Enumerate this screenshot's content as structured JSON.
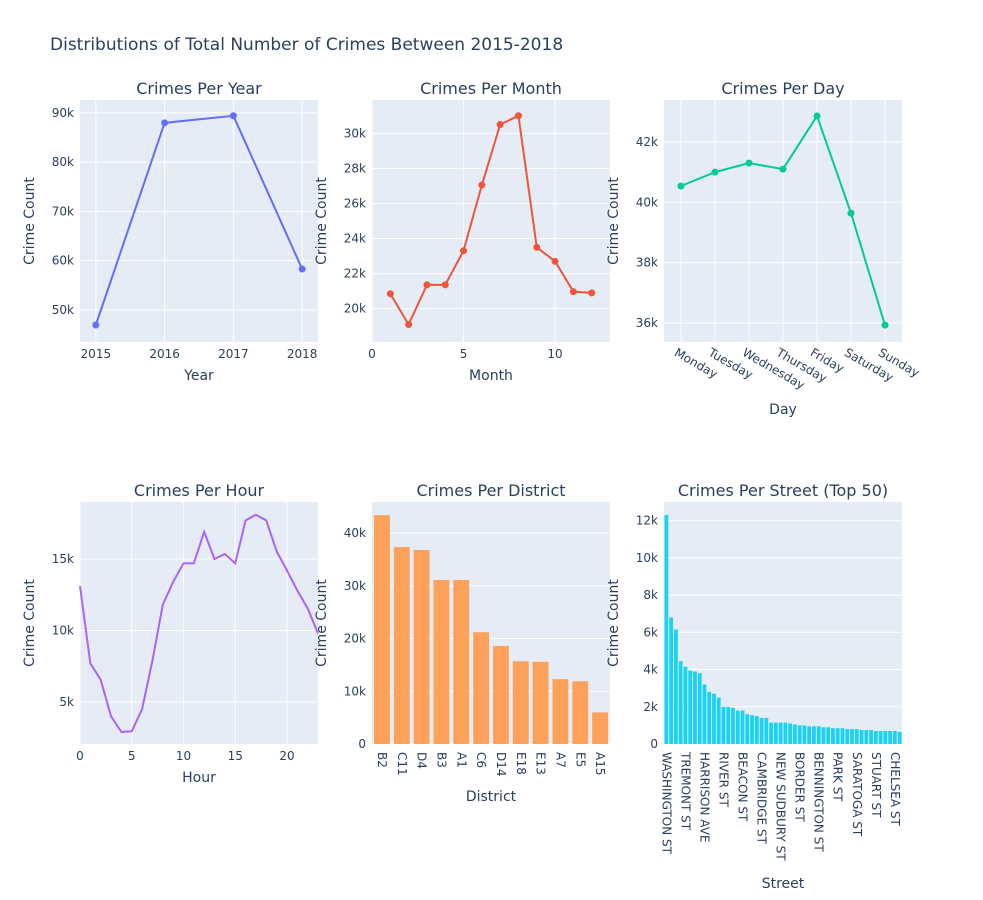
{
  "title": "Distributions of Total Number of Crimes Between 2015-2018",
  "chart_data": [
    {
      "type": "line",
      "title": "Crimes Per Year",
      "x_label": "Year",
      "y_label": "Crime Count",
      "color": "#636efa",
      "markers": true,
      "grid": true,
      "x": [
        2015,
        2016,
        2017,
        2018
      ],
      "values": [
        46950,
        87970,
        89400,
        58300
      ],
      "xlim": [
        2014.77,
        2018.23
      ],
      "xticks": [
        2015,
        2016,
        2017,
        2018
      ],
      "ylim": [
        43500,
        92600
      ],
      "yticks": [
        {
          "value": 50000,
          "label": "50k"
        },
        {
          "value": 60000,
          "label": "60k"
        },
        {
          "value": 70000,
          "label": "70k"
        },
        {
          "value": 80000,
          "label": "80k"
        },
        {
          "value": 90000,
          "label": "90k"
        }
      ]
    },
    {
      "type": "line",
      "title": "Crimes Per Month",
      "x_label": "Month",
      "y_label": "Crime Count",
      "color": "#ef553b",
      "markers": true,
      "grid": true,
      "x": [
        1,
        2,
        3,
        4,
        5,
        6,
        7,
        8,
        9,
        10,
        11,
        12
      ],
      "values": [
        20850,
        19100,
        21360,
        21360,
        23300,
        27050,
        30500,
        31000,
        23500,
        22700,
        20970,
        20900
      ],
      "xlim": [
        0,
        13
      ],
      "xticks": [
        0,
        5,
        10
      ],
      "ylim": [
        18100,
        31900
      ],
      "yticks": [
        {
          "value": 20000,
          "label": "20k"
        },
        {
          "value": 22000,
          "label": "22k"
        },
        {
          "value": 24000,
          "label": "24k"
        },
        {
          "value": 26000,
          "label": "26k"
        },
        {
          "value": 28000,
          "label": "28k"
        },
        {
          "value": 30000,
          "label": "30k"
        }
      ]
    },
    {
      "type": "line",
      "title": "Crimes Per Day",
      "x_label": "Day",
      "y_label": "Crime Count",
      "color": "#00cc96",
      "markers": true,
      "grid": true,
      "categories": [
        "Monday",
        "Tuesday",
        "Wednesday",
        "Thursday",
        "Friday",
        "Saturday",
        "Sunday"
      ],
      "values": [
        40540,
        41000,
        41300,
        41100,
        42860,
        39640,
        35930
      ],
      "ylim": [
        35370,
        43390
      ],
      "yticks": [
        {
          "value": 36000,
          "label": "36k"
        },
        {
          "value": 38000,
          "label": "38k"
        },
        {
          "value": 40000,
          "label": "40k"
        },
        {
          "value": 42000,
          "label": "42k"
        }
      ]
    },
    {
      "type": "line",
      "title": "Crimes Per Hour",
      "x_label": "Hour",
      "y_label": "Crime Count",
      "color": "#ab63fa",
      "markers": false,
      "grid": true,
      "x": [
        0,
        1,
        2,
        3,
        4,
        5,
        6,
        7,
        8,
        9,
        10,
        11,
        12,
        13,
        14,
        15,
        16,
        17,
        18,
        19,
        20,
        21,
        22,
        23
      ],
      "values": [
        13100,
        7700,
        6550,
        4000,
        2900,
        2950,
        4500,
        7900,
        11800,
        13400,
        14700,
        14700,
        16900,
        15000,
        15350,
        14700,
        17700,
        18100,
        17700,
        15550,
        14200,
        12800,
        11550,
        9800
      ],
      "xlim": [
        0,
        23
      ],
      "xticks": [
        0,
        5,
        10,
        15,
        20
      ],
      "ylim": [
        2060,
        18990
      ],
      "yticks": [
        {
          "value": 5000,
          "label": "5k"
        },
        {
          "value": 10000,
          "label": "10k"
        },
        {
          "value": 15000,
          "label": "15k"
        }
      ]
    },
    {
      "type": "bar",
      "title": "Crimes Per District",
      "x_label": "District",
      "y_label": "Crime Count",
      "color": "#ffa15a",
      "grid": true,
      "categories": [
        "B2",
        "C11",
        "D4",
        "B3",
        "A1",
        "C6",
        "D14",
        "E18",
        "E13",
        "A7",
        "E5",
        "A15"
      ],
      "values": [
        43400,
        37350,
        36800,
        31100,
        31100,
        21200,
        18600,
        15700,
        15600,
        12300,
        11900,
        6000
      ],
      "ylim": [
        0,
        45900
      ],
      "yticks": [
        0,
        {
          "value": 10000,
          "label": "10k"
        },
        {
          "value": 20000,
          "label": "20k"
        },
        {
          "value": 30000,
          "label": "30k"
        },
        {
          "value": 40000,
          "label": "40k"
        }
      ]
    },
    {
      "type": "bar",
      "title": "Crimes Per Street (Top 50)",
      "x_label": "Street",
      "y_label": "Crime Count",
      "color": "#19d3f3",
      "grid": true,
      "categories": [
        "WASHINGTON ST",
        null,
        null,
        null,
        "TREMONT ST",
        null,
        null,
        null,
        "HARRISON AVE",
        null,
        null,
        null,
        "RIVER ST",
        null,
        null,
        null,
        "BEACON ST",
        null,
        null,
        null,
        "CAMBRIDGE ST",
        null,
        null,
        null,
        "NEW SUDBURY ST",
        null,
        null,
        null,
        "BORDER ST",
        null,
        null,
        null,
        "BENNINGTON ST",
        null,
        null,
        null,
        "PARK ST",
        null,
        null,
        null,
        "SARATOGA ST",
        null,
        null,
        null,
        "STUART ST",
        null,
        null,
        null,
        "CHELSEA ST",
        null
      ],
      "values": [
        12300,
        6800,
        6150,
        4450,
        4150,
        3950,
        3900,
        3800,
        3200,
        2800,
        2700,
        2500,
        2000,
        2000,
        1950,
        1800,
        1800,
        1600,
        1550,
        1500,
        1400,
        1400,
        1150,
        1150,
        1150,
        1150,
        1100,
        1050,
        1000,
        1000,
        950,
        950,
        950,
        900,
        900,
        850,
        850,
        850,
        800,
        800,
        800,
        750,
        750,
        750,
        700,
        700,
        700,
        700,
        700,
        650
      ],
      "ylim": [
        0,
        13000
      ],
      "yticks": [
        0,
        {
          "value": 2000,
          "label": "2k"
        },
        {
          "value": 4000,
          "label": "4k"
        },
        {
          "value": 6000,
          "label": "6k"
        },
        {
          "value": 8000,
          "label": "8k"
        },
        {
          "value": 10000,
          "label": "10k"
        },
        {
          "value": 12000,
          "label": "12k"
        }
      ]
    }
  ]
}
